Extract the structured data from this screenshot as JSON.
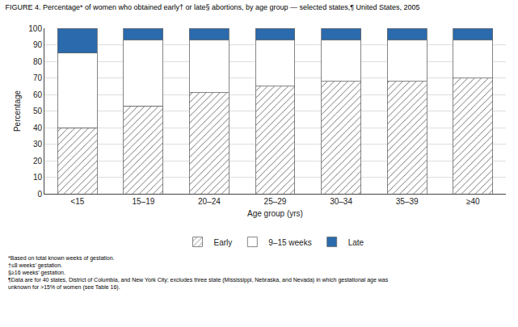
{
  "chart_data": {
    "type": "bar",
    "title": "FIGURE 4. Percentage* of women who obtained early† or late§ abortions, by age group — selected states,¶ United States, 2005",
    "x_label": "Age group (yrs)",
    "y_label": "Percentage",
    "categories": [
      "<15",
      "15–19",
      "20–24",
      "25–29",
      "30–34",
      "35–39",
      "≥40"
    ],
    "series": [
      {
        "name": "Early",
        "color": "white",
        "values": [
          40,
          53,
          61,
          65,
          68,
          68,
          70
        ]
      },
      {
        "name": "9–15 weeks",
        "color": "white",
        "values": [
          45,
          40,
          32,
          28,
          25,
          25,
          23
        ]
      },
      {
        "name": "Late",
        "color": "#2a6aad",
        "values": [
          15,
          7,
          7,
          7,
          7,
          7,
          7
        ]
      }
    ],
    "stacked": true,
    "ylim": [
      0,
      100
    ],
    "yticks": [
      0,
      10,
      20,
      30,
      40,
      50,
      60,
      70,
      80,
      90,
      100
    ],
    "grid": true,
    "annotations": [
      "*Based on total known weeks of gestation.",
      "†≤8 weeks’ gestation.",
      "§≥16 weeks’ gestation.",
      "¶Data are for 40 states, District of Columbia, and New York City; excludes three state (Mississippi, Nebraska, and Nevada) in which gestational age was\nunknown for >15% of women (see Table 16)."
    ]
  }
}
